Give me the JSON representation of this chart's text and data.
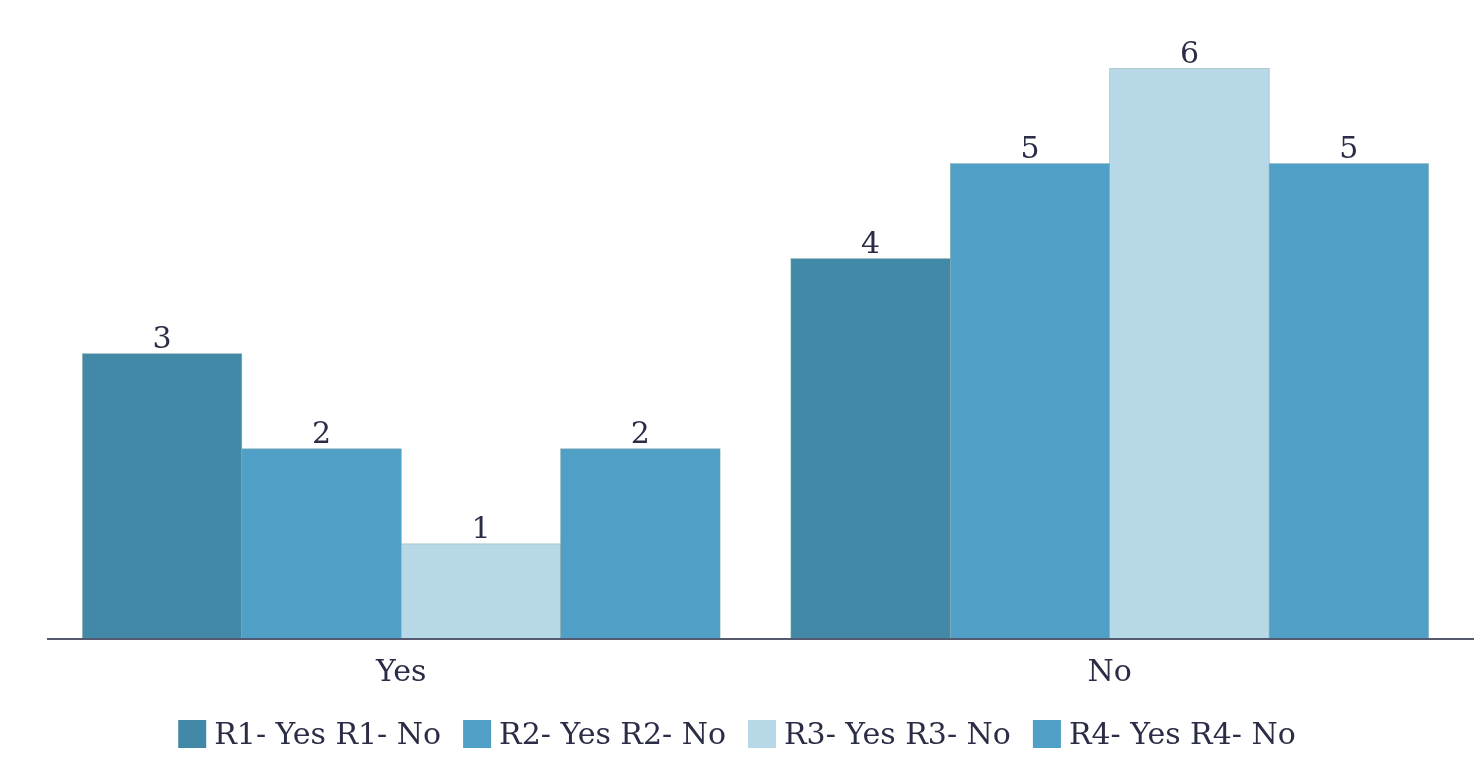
{
  "chart_data": {
    "type": "bar",
    "categories": [
      "Yes",
      "No"
    ],
    "series": [
      {
        "name": "R1- Yes R1- No",
        "color": "#4289a8",
        "values": [
          3,
          4
        ]
      },
      {
        "name": "R2- Yes R2- No",
        "color": "#4f9fc6",
        "values": [
          2,
          5
        ]
      },
      {
        "name": "R3- Yes R3- No",
        "color": "#b6d8e7",
        "values": [
          1,
          6
        ]
      },
      {
        "name": "R4- Yes R4- No",
        "color": "#4f9fc6",
        "values": [
          2,
          5
        ]
      }
    ],
    "data_labels": true,
    "legend": "bottom"
  }
}
